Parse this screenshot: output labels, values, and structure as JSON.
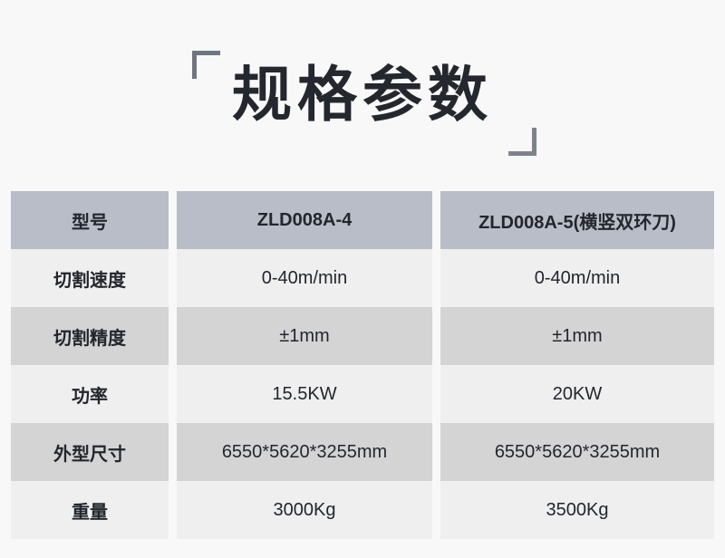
{
  "title": {
    "text": "规格参数"
  },
  "colors": {
    "page_bg": "#f8f8f8",
    "header_row_bg": "#b9bdc8",
    "row_light_bg": "#efefef",
    "row_dark_bg": "#d4d4d4",
    "text": "#23262d",
    "title_text": "#24272e",
    "bracket": "#6f7581"
  },
  "table": {
    "header": {
      "label": "型号",
      "col1": "ZLD008A-4",
      "col2": "ZLD008A-5(横竖双环刀)"
    },
    "rows": [
      {
        "label": "切割速度",
        "col1": "0-40m/min",
        "col2": "0-40m/min"
      },
      {
        "label": "切割精度",
        "col1": "±1mm",
        "col2": "±1mm"
      },
      {
        "label": "功率",
        "col1": "15.5KW",
        "col2": "20KW"
      },
      {
        "label": "外型尺寸",
        "col1": "6550*5620*3255mm",
        "col2": "6550*5620*3255mm"
      },
      {
        "label": "重量",
        "col1": "3000Kg",
        "col2": "3500Kg"
      }
    ]
  }
}
